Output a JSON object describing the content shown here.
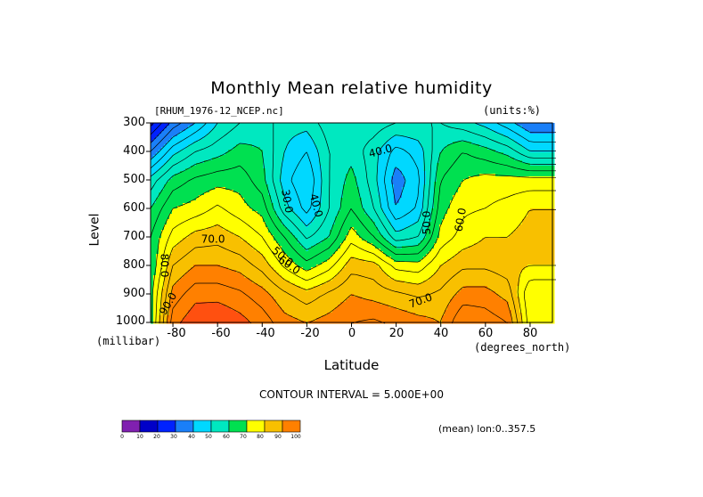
{
  "header": {
    "title": "Monthly Mean relative humidity",
    "dataset": "[RHUM_1976-12_NCEP.nc]",
    "units": "(units:%)"
  },
  "axes": {
    "ylabel": "Level",
    "yunit": "(millibar)",
    "xlabel": "Latitude",
    "xunit": "(degrees_north)"
  },
  "footer": {
    "contour_interval": "CONTOUR INTERVAL = 5.000E+00",
    "averaging": "(mean) lon:0..357.5"
  },
  "chart_data": {
    "type": "heatmap",
    "title": "Monthly Mean relative humidity",
    "xlabel": "Latitude",
    "ylabel": "Level",
    "xlim": [
      -90,
      90
    ],
    "ylim": [
      1000,
      300
    ],
    "x_ticks": [
      "-80",
      "-60",
      "-40",
      "-20",
      "0",
      "20",
      "40",
      "60",
      "80"
    ],
    "y_ticks": [
      "300",
      "400",
      "500",
      "600",
      "700",
      "800",
      "900",
      "1000"
    ],
    "levels": [
      1000,
      900,
      800,
      700,
      600,
      500,
      400,
      300
    ],
    "latitudes": [
      -90,
      -80,
      -70,
      -60,
      -50,
      -40,
      -30,
      -20,
      -10,
      0,
      10,
      20,
      30,
      40,
      50,
      60,
      70,
      80,
      90
    ],
    "values": [
      [
        58,
        88,
        94,
        95,
        92,
        88,
        82,
        80,
        82,
        85,
        86,
        84,
        82,
        80,
        90,
        88,
        85,
        62,
        62
      ],
      [
        58,
        82,
        88,
        88,
        86,
        82,
        76,
        72,
        76,
        80,
        78,
        76,
        74,
        76,
        82,
        82,
        78,
        60,
        60
      ],
      [
        55,
        75,
        80,
        80,
        78,
        73,
        64,
        57,
        63,
        73,
        72,
        63,
        62,
        70,
        74,
        74,
        72,
        70,
        70
      ],
      [
        55,
        67,
        72,
        73,
        70,
        65,
        55,
        44,
        50,
        63,
        55,
        42,
        45,
        62,
        67,
        70,
        70,
        72,
        72
      ],
      [
        50,
        60,
        62,
        66,
        62,
        58,
        42,
        33,
        45,
        55,
        45,
        30,
        36,
        58,
        64,
        65,
        67,
        70,
        70
      ],
      [
        42,
        52,
        56,
        58,
        58,
        52,
        37,
        30,
        45,
        52,
        42,
        27,
        34,
        55,
        60,
        62,
        62,
        62,
        62
      ],
      [
        25,
        38,
        45,
        48,
        52,
        50,
        40,
        35,
        45,
        48,
        42,
        33,
        37,
        50,
        55,
        52,
        48,
        40,
        40
      ],
      [
        8,
        22,
        30,
        40,
        45,
        48,
        42,
        42,
        48,
        48,
        48,
        45,
        45,
        45,
        42,
        38,
        32,
        25,
        25
      ]
    ],
    "contour_labels": [
      "30.0",
      "40.0",
      "40.0",
      "50.0",
      "50.0",
      "60.0",
      "60.0",
      "70.0",
      "70.0",
      "80.0",
      "90.0"
    ],
    "colorbar": {
      "ticks": [
        "0",
        "10",
        "20",
        "30",
        "40",
        "50",
        "60",
        "70",
        "80",
        "90",
        "100"
      ],
      "colors": [
        "#8020b0",
        "#0000c8",
        "#0022ff",
        "#1a7ff8",
        "#00d8ff",
        "#00e8c0",
        "#00e050",
        "#ffff00",
        "#f8c000",
        "#ff8000",
        "#ff5010",
        "#ff0000"
      ]
    }
  }
}
